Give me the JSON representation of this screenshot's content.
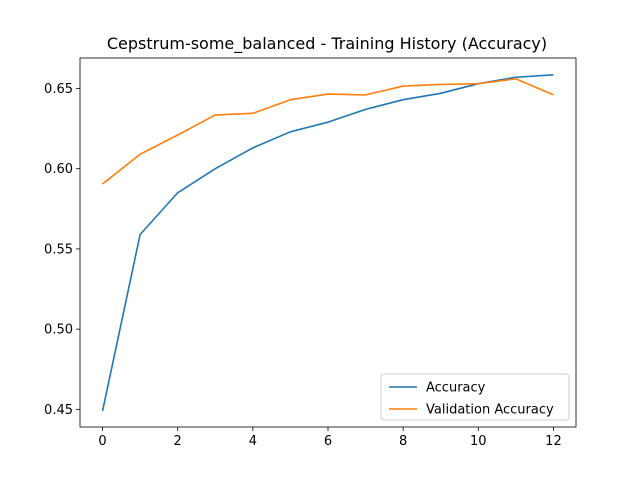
{
  "chart_data": {
    "type": "line",
    "title": "Cepstrum-some_balanced - Training History (Accuracy)",
    "xlabel": "",
    "ylabel": "",
    "x": [
      0,
      1,
      2,
      3,
      4,
      5,
      6,
      7,
      8,
      9,
      10,
      11,
      12
    ],
    "xlim": [
      -0.6,
      12.6
    ],
    "ylim": [
      0.439,
      0.669
    ],
    "xticks": [
      0,
      2,
      4,
      6,
      8,
      10,
      12
    ],
    "yticks": [
      0.45,
      0.5,
      0.55,
      0.6,
      0.65
    ],
    "ytick_labels": [
      "0.45",
      "0.50",
      "0.55",
      "0.60",
      "0.65"
    ],
    "grid": false,
    "legend_position": "lower-right",
    "series": [
      {
        "name": "Accuracy",
        "color": "#1f77b4",
        "values": [
          0.449,
          0.559,
          0.585,
          0.6,
          0.613,
          0.623,
          0.629,
          0.637,
          0.643,
          0.647,
          0.653,
          0.657,
          0.6585
        ]
      },
      {
        "name": "Validation Accuracy",
        "color": "#ff7f0e",
        "values": [
          0.5905,
          0.609,
          0.621,
          0.6335,
          0.6345,
          0.643,
          0.6465,
          0.646,
          0.6515,
          0.6525,
          0.653,
          0.656,
          0.646
        ]
      }
    ]
  }
}
